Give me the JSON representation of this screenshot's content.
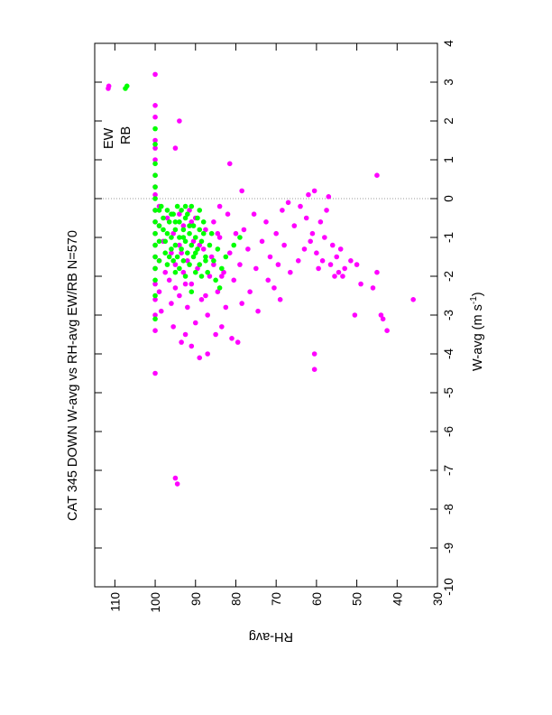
{
  "chart_data": {
    "type": "scatter",
    "title": "CAT 345   DOWN   W-avg  vs  RH-avg   EW/RB   N=570",
    "xlabel": "W-avg (m s",
    "xlabel_superscript": "-1",
    "xlabel_close": ")",
    "ylabel": "RH-avg",
    "xlim": [
      -10,
      4
    ],
    "ylim": [
      30,
      115
    ],
    "x_ticks": [
      "-10",
      "-9",
      "-8",
      "-7",
      "-6",
      "-5",
      "-4",
      "-3",
      "-2",
      "-1",
      "0",
      "1",
      "2",
      "3",
      "4"
    ],
    "y_ticks": [
      "30",
      "40",
      "50",
      "60",
      "70",
      "80",
      "90",
      "100",
      "110"
    ],
    "zero_line": true,
    "grid": false,
    "legend_placement": "top-right",
    "series": [
      {
        "name": "EW",
        "color": "#ff00ff",
        "points": [
          [
            2.9,
            111.5
          ],
          [
            3.2,
            100
          ],
          [
            2.4,
            100
          ],
          [
            2.1,
            100
          ],
          [
            1.5,
            100
          ],
          [
            1.3,
            100
          ],
          [
            1.0,
            100
          ],
          [
            0.6,
            100
          ],
          [
            0.3,
            100
          ],
          [
            0.1,
            100
          ],
          [
            -0.3,
            100
          ],
          [
            -0.6,
            100
          ],
          [
            -0.9,
            100
          ],
          [
            -1.2,
            100
          ],
          [
            -1.5,
            100
          ],
          [
            -1.8,
            100
          ],
          [
            -2.2,
            100
          ],
          [
            -2.6,
            100
          ],
          [
            -3.0,
            100
          ],
          [
            -3.4,
            100
          ],
          [
            -4.5,
            100
          ],
          [
            -0.2,
            99
          ],
          [
            -0.7,
            99
          ],
          [
            -1.6,
            99
          ],
          [
            -2.4,
            99
          ],
          [
            -2.9,
            98.5
          ],
          [
            -1.1,
            98
          ],
          [
            -1.9,
            97.5
          ],
          [
            -0.5,
            97
          ],
          [
            -2.1,
            96.5
          ],
          [
            -1.4,
            96
          ],
          [
            -2.7,
            96
          ],
          [
            -0.9,
            95.5
          ],
          [
            -3.3,
            95.5
          ],
          [
            -1.7,
            95
          ],
          [
            -2.3,
            95
          ],
          [
            1.3,
            95
          ],
          [
            -7.2,
            95
          ],
          [
            -7.35,
            94.5
          ],
          [
            -0.4,
            94
          ],
          [
            -1.2,
            94
          ],
          [
            -2.5,
            94
          ],
          [
            2.0,
            94
          ],
          [
            -3.7,
            93.5
          ],
          [
            -1.9,
            93
          ],
          [
            -0.7,
            93
          ],
          [
            -3.5,
            92.5
          ],
          [
            -2.8,
            92
          ],
          [
            -1.6,
            92
          ],
          [
            -0.3,
            91.5
          ],
          [
            -3.8,
            91
          ],
          [
            -2.2,
            91
          ],
          [
            -1.1,
            90.5
          ],
          [
            -3.2,
            90
          ],
          [
            -0.5,
            90
          ],
          [
            -1.8,
            89.5
          ],
          [
            -4.1,
            89
          ],
          [
            -2.6,
            88.5
          ],
          [
            -1.3,
            88
          ],
          [
            -0.8,
            87.5
          ],
          [
            -4.0,
            87
          ],
          [
            -3.0,
            87
          ],
          [
            -2.0,
            86.5
          ],
          [
            -1.5,
            86
          ],
          [
            -0.6,
            85.5
          ],
          [
            -3.5,
            85
          ],
          [
            -2.4,
            84.5
          ],
          [
            -1.0,
            84
          ],
          [
            -0.2,
            84
          ],
          [
            -3.3,
            83.5
          ],
          [
            -1.9,
            83
          ],
          [
            -2.8,
            82.5
          ],
          [
            -0.4,
            82
          ],
          [
            0.9,
            81.5
          ],
          [
            -1.4,
            81.5
          ],
          [
            -3.6,
            81
          ],
          [
            -2.1,
            80.5
          ],
          [
            -0.9,
            80
          ],
          [
            -3.7,
            79.5
          ],
          [
            -1.7,
            79
          ],
          [
            -2.7,
            78.5
          ],
          [
            0.2,
            78.5
          ],
          [
            -0.8,
            78
          ],
          [
            -1.3,
            77
          ],
          [
            -2.4,
            76.5
          ],
          [
            -0.4,
            75.5
          ],
          [
            -1.8,
            75
          ],
          [
            -2.9,
            74.5
          ],
          [
            -1.1,
            73.5
          ],
          [
            -0.6,
            72.5
          ],
          [
            -2.1,
            72
          ],
          [
            -1.5,
            71.5
          ],
          [
            -2.3,
            70.5
          ],
          [
            -0.9,
            70
          ],
          [
            -1.7,
            69.5
          ],
          [
            -2.6,
            69
          ],
          [
            -0.3,
            68.5
          ],
          [
            -1.2,
            68
          ],
          [
            -0.1,
            67
          ],
          [
            -1.9,
            66.5
          ],
          [
            -0.7,
            65.5
          ],
          [
            -1.6,
            64.5
          ],
          [
            -0.2,
            64
          ],
          [
            -1.3,
            63
          ],
          [
            -0.5,
            62.5
          ],
          [
            0.1,
            62
          ],
          [
            -1.1,
            61.5
          ],
          [
            -0.9,
            61
          ],
          [
            0.2,
            60.5
          ],
          [
            -1.4,
            60
          ],
          [
            -1.8,
            59.5
          ],
          [
            -0.6,
            59
          ],
          [
            -1.6,
            58.5
          ],
          [
            -1.0,
            58
          ],
          [
            -0.3,
            57.5
          ],
          [
            0.05,
            57
          ],
          [
            -1.7,
            56.5
          ],
          [
            -1.2,
            56
          ],
          [
            -2.0,
            55.5
          ],
          [
            -1.5,
            55
          ],
          [
            -1.9,
            54.5
          ],
          [
            -1.3,
            54
          ],
          [
            -2.0,
            53.5
          ],
          [
            -1.8,
            53
          ],
          [
            -1.6,
            51.5
          ],
          [
            -3.0,
            50.5
          ],
          [
            -1.7,
            50
          ],
          [
            -2.2,
            49
          ],
          [
            -2.3,
            46
          ],
          [
            -1.9,
            45
          ],
          [
            0.6,
            45
          ],
          [
            -3.0,
            44
          ],
          [
            -3.1,
            43.5
          ],
          [
            -3.4,
            42.5
          ],
          [
            -2.6,
            36
          ],
          [
            -4.0,
            60.5
          ],
          [
            -4.4,
            60.5
          ],
          [
            -1.4,
            93.5
          ],
          [
            -2.2,
            92.5
          ],
          [
            -0.6,
            91
          ],
          [
            -1.2,
            89
          ],
          [
            -2.5,
            87.5
          ],
          [
            -1.7,
            85.5
          ],
          [
            -0.9,
            84.5
          ],
          [
            -2.0,
            83.5
          ]
        ]
      },
      {
        "name": "RB",
        "color": "#00ff00",
        "points": [
          [
            2.9,
            107
          ],
          [
            1.8,
            100
          ],
          [
            1.4,
            100
          ],
          [
            0.9,
            100
          ],
          [
            0.6,
            100
          ],
          [
            0.3,
            100
          ],
          [
            0.0,
            100
          ],
          [
            -0.3,
            100
          ],
          [
            -0.6,
            100
          ],
          [
            -0.9,
            100
          ],
          [
            -1.2,
            100
          ],
          [
            -1.5,
            100
          ],
          [
            -1.8,
            100
          ],
          [
            -2.1,
            100
          ],
          [
            -2.5,
            100
          ],
          [
            -3.1,
            100
          ],
          [
            -0.2,
            98.5
          ],
          [
            -0.5,
            98
          ],
          [
            -0.8,
            98
          ],
          [
            -1.1,
            97.5
          ],
          [
            -1.4,
            97.5
          ],
          [
            -0.3,
            97
          ],
          [
            -1.7,
            97
          ],
          [
            -0.6,
            96.5
          ],
          [
            -1.0,
            96
          ],
          [
            -1.3,
            96
          ],
          [
            -1.6,
            95.5
          ],
          [
            -0.4,
            95.5
          ],
          [
            -0.8,
            95
          ],
          [
            -1.2,
            95
          ],
          [
            -1.9,
            95
          ],
          [
            -0.2,
            94.5
          ],
          [
            -1.5,
            94.5
          ],
          [
            -0.6,
            94
          ],
          [
            -1.0,
            94
          ],
          [
            -1.8,
            94
          ],
          [
            -0.3,
            93.5
          ],
          [
            -1.3,
            93.5
          ],
          [
            -0.8,
            93
          ],
          [
            -1.6,
            93
          ],
          [
            -0.5,
            92.5
          ],
          [
            -1.1,
            92.5
          ],
          [
            -2.0,
            92.5
          ],
          [
            -0.4,
            92
          ],
          [
            -1.4,
            92
          ],
          [
            -0.9,
            91.5
          ],
          [
            -1.7,
            91.5
          ],
          [
            -0.2,
            91
          ],
          [
            -1.2,
            91
          ],
          [
            -2.4,
            91
          ],
          [
            -0.7,
            90.5
          ],
          [
            -1.5,
            90.5
          ],
          [
            -1.0,
            90
          ],
          [
            -1.9,
            90
          ],
          [
            -0.5,
            89.5
          ],
          [
            -1.3,
            89.5
          ],
          [
            -0.8,
            89
          ],
          [
            -1.7,
            89
          ],
          [
            -1.1,
            88.5
          ],
          [
            -2.0,
            88.5
          ],
          [
            -0.6,
            88
          ],
          [
            -1.5,
            87.5
          ],
          [
            -1.9,
            87
          ],
          [
            -1.2,
            86.5
          ],
          [
            -0.9,
            86
          ],
          [
            -1.6,
            85.5
          ],
          [
            -2.1,
            85
          ],
          [
            -1.3,
            84.5
          ],
          [
            -2.3,
            84
          ],
          [
            -1.8,
            83.5
          ],
          [
            -1.5,
            82.5
          ],
          [
            -1.2,
            80.5
          ],
          [
            -1.0,
            79
          ],
          [
            -0.3,
            99
          ],
          [
            -0.7,
            99
          ],
          [
            -1.1,
            99
          ],
          [
            -1.6,
            99
          ],
          [
            -0.4,
            96
          ],
          [
            -0.9,
            97
          ],
          [
            -1.5,
            96.5
          ],
          [
            -0.6,
            95
          ],
          [
            -1.0,
            93
          ],
          [
            -0.2,
            92.5
          ],
          [
            -0.7,
            91.5
          ],
          [
            -1.4,
            90
          ],
          [
            -0.3,
            89
          ],
          [
            -0.9,
            88
          ],
          [
            -1.6,
            87.5
          ]
        ]
      }
    ]
  }
}
